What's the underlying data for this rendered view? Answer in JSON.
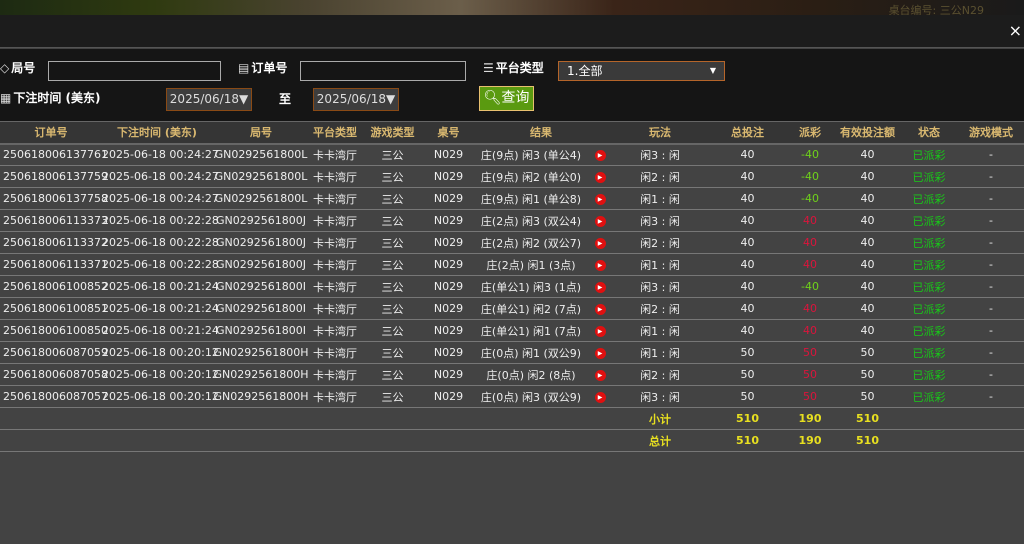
{
  "background": {
    "table_label": "桌台编号: 三公N29"
  },
  "close_label": "×",
  "filters": {
    "round_label": "局号",
    "round_value": "",
    "order_label": "订单号",
    "order_value": "",
    "platform_label": "平台类型",
    "platform_selected": "1.全部",
    "time_label": "下注时间 (美东)",
    "date_from": "2025/06/18▼",
    "to_label": "至",
    "date_to": "2025/06/18▼",
    "query_label": "查询"
  },
  "columns": [
    "订单号",
    "下注时间 (美东)",
    "局号",
    "平台类型",
    "游戏类型",
    "桌号",
    "结果",
    "玩法",
    "总投注",
    "派彩",
    "有效投注额",
    "状态",
    "游戏模式"
  ],
  "rows": [
    [
      "250618006137761",
      "2025-06-18 00:24:27",
      "GN0292561800L",
      "卡卡湾厅",
      "三公",
      "N029",
      "庄(9点) 闲3 (单公4)",
      "闲3 : 闲",
      "40",
      "-40",
      "40",
      "已派彩",
      "-"
    ],
    [
      "250618006137759",
      "2025-06-18 00:24:27",
      "GN0292561800L",
      "卡卡湾厅",
      "三公",
      "N029",
      "庄(9点) 闲2 (单公0)",
      "闲2 : 闲",
      "40",
      "-40",
      "40",
      "已派彩",
      "-"
    ],
    [
      "250618006137758",
      "2025-06-18 00:24:27",
      "GN0292561800L",
      "卡卡湾厅",
      "三公",
      "N029",
      "庄(9点) 闲1 (单公8)",
      "闲1 : 闲",
      "40",
      "-40",
      "40",
      "已派彩",
      "-"
    ],
    [
      "250618006113373",
      "2025-06-18 00:22:28",
      "GN0292561800J",
      "卡卡湾厅",
      "三公",
      "N029",
      "庄(2点) 闲3 (双公4)",
      "闲3 : 闲",
      "40",
      "40",
      "40",
      "已派彩",
      "-"
    ],
    [
      "250618006113372",
      "2025-06-18 00:22:28",
      "GN0292561800J",
      "卡卡湾厅",
      "三公",
      "N029",
      "庄(2点) 闲2 (双公7)",
      "闲2 : 闲",
      "40",
      "40",
      "40",
      "已派彩",
      "-"
    ],
    [
      "250618006113371",
      "2025-06-18 00:22:28",
      "GN0292561800J",
      "卡卡湾厅",
      "三公",
      "N029",
      "庄(2点) 闲1 (3点)",
      "闲1 : 闲",
      "40",
      "40",
      "40",
      "已派彩",
      "-"
    ],
    [
      "250618006100852",
      "2025-06-18 00:21:24",
      "GN0292561800I",
      "卡卡湾厅",
      "三公",
      "N029",
      "庄(单公1) 闲3 (1点)",
      "闲3 : 闲",
      "40",
      "-40",
      "40",
      "已派彩",
      "-"
    ],
    [
      "250618006100851",
      "2025-06-18 00:21:24",
      "GN0292561800I",
      "卡卡湾厅",
      "三公",
      "N029",
      "庄(单公1) 闲2 (7点)",
      "闲2 : 闲",
      "40",
      "40",
      "40",
      "已派彩",
      "-"
    ],
    [
      "250618006100850",
      "2025-06-18 00:21:24",
      "GN0292561800I",
      "卡卡湾厅",
      "三公",
      "N029",
      "庄(单公1) 闲1 (7点)",
      "闲1 : 闲",
      "40",
      "40",
      "40",
      "已派彩",
      "-"
    ],
    [
      "250618006087059",
      "2025-06-18 00:20:12",
      "GN0292561800H",
      "卡卡湾厅",
      "三公",
      "N029",
      "庄(0点) 闲1 (双公9)",
      "闲1 : 闲",
      "50",
      "50",
      "50",
      "已派彩",
      "-"
    ],
    [
      "250618006087058",
      "2025-06-18 00:20:12",
      "GN0292561800H",
      "卡卡湾厅",
      "三公",
      "N029",
      "庄(0点) 闲2 (8点)",
      "闲2 : 闲",
      "50",
      "50",
      "50",
      "已派彩",
      "-"
    ],
    [
      "250618006087057",
      "2025-06-18 00:20:12",
      "GN0292561800H",
      "卡卡湾厅",
      "三公",
      "N029",
      "庄(0点) 闲3 (双公9)",
      "闲3 : 闲",
      "50",
      "50",
      "50",
      "已派彩",
      "-"
    ]
  ],
  "subtotal": {
    "label": "小计",
    "total_bet": "510",
    "payout": "190",
    "valid_bet": "510"
  },
  "total": {
    "label": "总计",
    "total_bet": "510",
    "payout": "190",
    "valid_bet": "510"
  },
  "colors": {
    "payout_negative": "#6fd21a",
    "payout_positive": "#dc143c",
    "status": "#18c818",
    "summary": "#e8e020",
    "header_text": "#d9b870",
    "query_button": "#5a9a10"
  }
}
